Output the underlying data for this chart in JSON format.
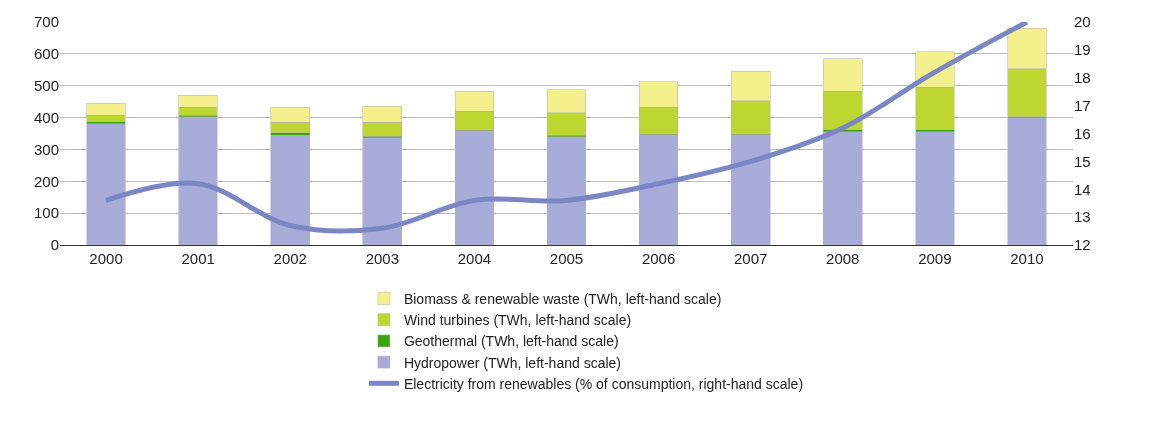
{
  "chart_data": {
    "type": "bar",
    "stacked": true,
    "categories": [
      "2000",
      "2001",
      "2002",
      "2003",
      "2004",
      "2005",
      "2006",
      "2007",
      "2008",
      "2009",
      "2010"
    ],
    "series": [
      {
        "name": "Hydropower (TWh, left-hand scale)",
        "color": "#a8acd8",
        "values": [
          380,
          403,
          345,
          337,
          357,
          340,
          344,
          344,
          355,
          355,
          400
        ]
      },
      {
        "name": "Geothermal (TWh, left-hand scale)",
        "color": "#3aa60e",
        "values": [
          7,
          4,
          7,
          4,
          3,
          4,
          4,
          4,
          7,
          7,
          3
        ]
      },
      {
        "name": "Wind turbines (TWh, left-hand scale)",
        "color": "#bdd630",
        "values": [
          20,
          26,
          33,
          45,
          60,
          71,
          84,
          105,
          120,
          133,
          150
        ]
      },
      {
        "name": "Biomass & renewable waste (TWh, left-hand scale)",
        "color": "#f4f08c",
        "values": [
          38,
          37,
          47,
          50,
          63,
          73,
          81,
          92,
          102,
          112,
          127
        ]
      },
      {
        "name": "Electricity from renewables (% of consumption, right-hand scale)",
        "type": "line",
        "axis": "y2",
        "color": "#7b86c4",
        "values": [
          13.6,
          14.2,
          12.7,
          12.6,
          13.6,
          13.6,
          14.2,
          15.0,
          16.2,
          18.2,
          20.0
        ]
      }
    ],
    "ylim": [
      0,
      700
    ],
    "yticks": [
      0,
      100,
      200,
      300,
      400,
      500,
      600,
      700
    ],
    "y2lim": [
      12,
      20
    ],
    "y2ticks": [
      12,
      13,
      14,
      15,
      16,
      17,
      18,
      19,
      20
    ],
    "grid": "y",
    "legend": "bottom",
    "marker": "none"
  }
}
